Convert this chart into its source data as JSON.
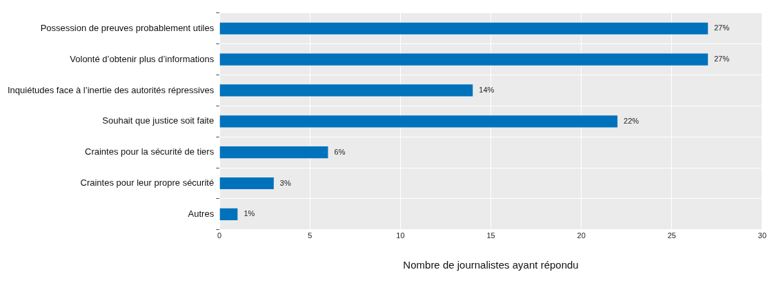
{
  "chart_data": {
    "type": "bar",
    "orientation": "horizontal",
    "xlabel": "Nombre de journalistes ayant répondu",
    "categories": [
      "Possession de preuves probablement utiles",
      "Volonté d’obtenir plus d’informations",
      "Inquiétudes face à l’inertie des autorités répressives",
      "Souhait que justice soit faite",
      "Craintes pour la sécurité de tiers",
      "Craintes pour leur propre sécurité",
      "Autres"
    ],
    "values": [
      27,
      27,
      14,
      22,
      6,
      3,
      1
    ],
    "value_labels": [
      "27%",
      "27%",
      "14%",
      "22%",
      "6%",
      "3%",
      "1%"
    ],
    "color": "#0072bc",
    "xlim": [
      0,
      30
    ],
    "xticks": [
      0,
      5,
      10,
      15,
      20,
      25,
      30
    ],
    "grid": true,
    "legend": false
  }
}
